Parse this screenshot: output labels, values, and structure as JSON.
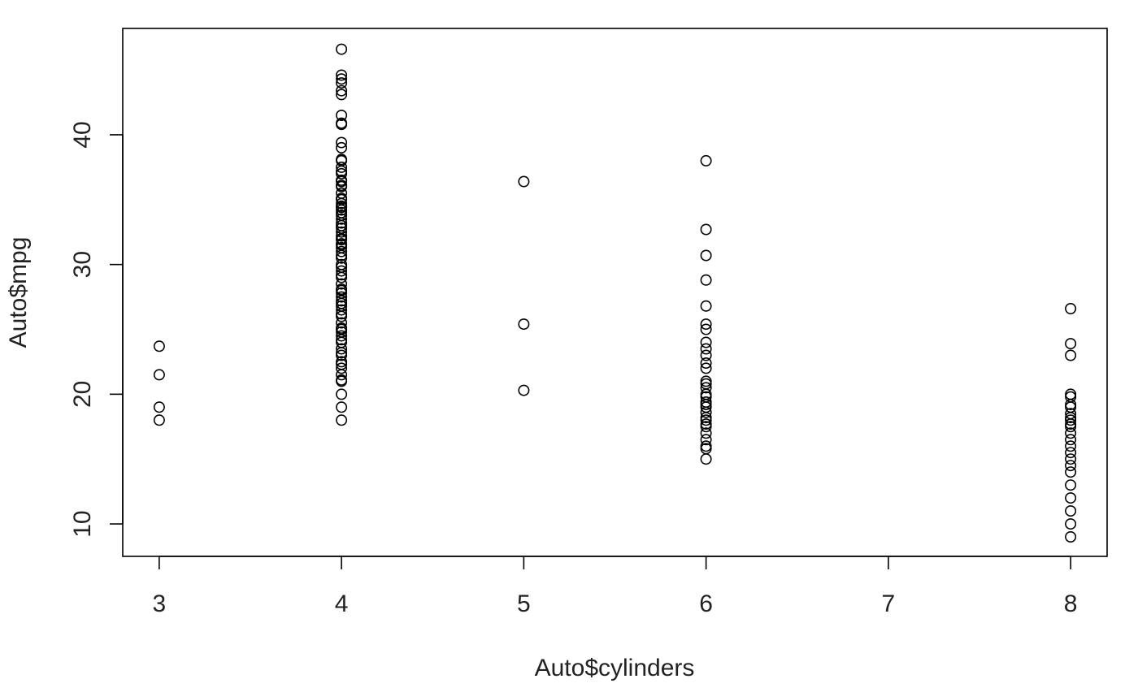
{
  "chart_data": {
    "type": "scatter",
    "title": "",
    "xlabel": "Auto$cylinders",
    "ylabel": "Auto$mpg",
    "xlim": [
      2.8,
      8.2
    ],
    "ylim": [
      7.5,
      48.2
    ],
    "xticks": [
      3,
      4,
      5,
      6,
      7,
      8
    ],
    "yticks": [
      10,
      20,
      30,
      40
    ],
    "grid": false,
    "legend": "none",
    "series": [
      {
        "x": [
          3,
          3,
          3,
          3,
          4,
          4,
          4,
          4,
          4,
          4,
          4,
          4,
          4,
          4,
          4,
          4,
          4,
          4,
          4,
          4,
          4,
          4,
          4,
          4,
          4,
          4,
          4,
          4,
          4,
          4,
          4,
          4,
          4,
          4,
          4,
          4,
          4,
          4,
          4,
          4,
          4,
          4,
          4,
          4,
          4,
          4,
          4,
          4,
          4,
          4,
          4,
          4,
          4,
          4,
          4,
          4,
          4,
          4,
          4,
          4,
          4,
          4,
          4,
          4,
          4,
          4,
          4,
          4,
          4,
          4,
          4,
          4,
          4,
          4,
          4,
          4,
          4,
          4,
          4,
          4,
          4,
          4,
          5,
          5,
          5,
          6,
          6,
          6,
          6,
          6,
          6,
          6,
          6,
          6,
          6,
          6,
          6,
          6,
          6,
          6,
          6,
          6,
          6,
          6,
          6,
          6,
          6,
          6,
          6,
          6,
          6,
          6,
          6,
          6,
          6,
          8,
          8,
          8,
          8,
          8,
          8,
          8,
          8,
          8,
          8,
          8,
          8,
          8,
          8,
          8,
          8,
          8,
          8,
          8,
          8,
          8,
          8,
          8,
          8
        ],
        "y": [
          18,
          19,
          21.5,
          23.7,
          18,
          19,
          20,
          21,
          21.5,
          22,
          22.5,
          23,
          23.5,
          24,
          24.5,
          25,
          25.5,
          26,
          26.5,
          27,
          27.5,
          28,
          28.5,
          29,
          29.5,
          30,
          30.5,
          31,
          31.5,
          32,
          32.5,
          33,
          33.5,
          34,
          34.5,
          35,
          35.5,
          36,
          36.5,
          37,
          37.5,
          38,
          39,
          39.4,
          40.8,
          41.5,
          43.1,
          43.4,
          44,
          44.3,
          44.6,
          46.6,
          21.1,
          22.3,
          23.2,
          24.2,
          25.1,
          26.2,
          26.8,
          27.2,
          28.1,
          29.8,
          31.3,
          31.9,
          32.2,
          32.8,
          33.8,
          34.2,
          34.7,
          35.1,
          36.1,
          37.2,
          38.1,
          40.9,
          24.8,
          27.8,
          29.2,
          30.7,
          31.6,
          33.2,
          34.4,
          36.4,
          20.3,
          25.4,
          36.4,
          15,
          15.8,
          16,
          16.5,
          17,
          17.5,
          18,
          18.2,
          18.6,
          19,
          19.2,
          19.8,
          20,
          20.5,
          20.8,
          21,
          22,
          22.4,
          23,
          23.5,
          24,
          25,
          25.4,
          26.8,
          28.8,
          30.7,
          32.7,
          38,
          17.7,
          19.4,
          9,
          10,
          11,
          12,
          13,
          14,
          14.5,
          15,
          15.5,
          16,
          16.5,
          17,
          17.5,
          17.7,
          18,
          18.2,
          18.5,
          19,
          19.2,
          19.8,
          20,
          23,
          23.9,
          26.6
        ]
      }
    ]
  }
}
